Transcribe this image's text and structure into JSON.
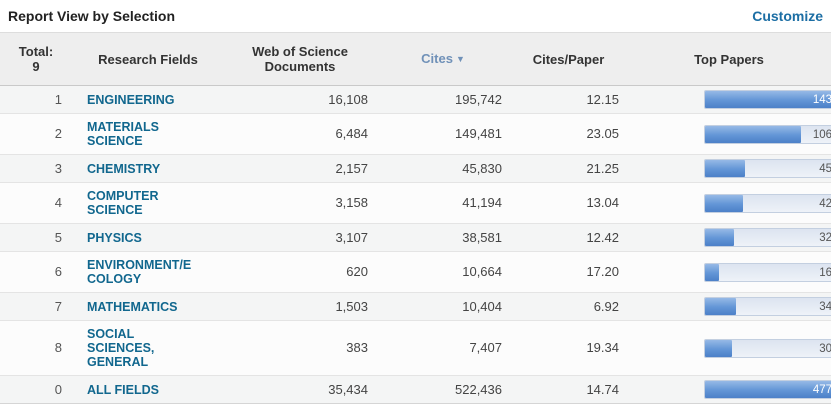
{
  "header": {
    "title": "Report View by Selection",
    "customize_label": "Customize"
  },
  "icons": {
    "sort_descending": "▼"
  },
  "colors": {
    "customize_link": "#1c6ea4",
    "field_link": "#11678e",
    "sorted_column": "#7091b8",
    "bar_fill": "#6295d6",
    "bar_track": "#e3eaf4",
    "header_bg": "#eeeeee"
  },
  "table": {
    "total_label": "Total:\n9",
    "columns": {
      "fields": "Research Fields",
      "docs": "Web of Science\nDocuments",
      "cites": "Cites",
      "cites_per_paper": "Cites/Paper",
      "top_papers": "Top Papers"
    },
    "sorted_by": "Cites",
    "rows": [
      {
        "rank": "1",
        "field": "ENGINEERING",
        "docs": "16,108",
        "cites": "195,742",
        "cites_per_paper": "12.15",
        "top_papers": "143",
        "bar_pct": 100,
        "bar_full": true
      },
      {
        "rank": "2",
        "field": "MATERIALS\nSCIENCE",
        "docs": "6,484",
        "cites": "149,481",
        "cites_per_paper": "23.05",
        "top_papers": "106",
        "bar_pct": 74,
        "bar_full": false
      },
      {
        "rank": "3",
        "field": "CHEMISTRY",
        "docs": "2,157",
        "cites": "45,830",
        "cites_per_paper": "21.25",
        "top_papers": "45",
        "bar_pct": 31,
        "bar_full": false
      },
      {
        "rank": "4",
        "field": "COMPUTER\nSCIENCE",
        "docs": "3,158",
        "cites": "41,194",
        "cites_per_paper": "13.04",
        "top_papers": "42",
        "bar_pct": 29,
        "bar_full": false
      },
      {
        "rank": "5",
        "field": "PHYSICS",
        "docs": "3,107",
        "cites": "38,581",
        "cites_per_paper": "12.42",
        "top_papers": "32",
        "bar_pct": 22,
        "bar_full": false
      },
      {
        "rank": "6",
        "field": "ENVIRONMENT/E\nCOLOGY",
        "docs": "620",
        "cites": "10,664",
        "cites_per_paper": "17.20",
        "top_papers": "16",
        "bar_pct": 11,
        "bar_full": false
      },
      {
        "rank": "7",
        "field": "MATHEMATICS",
        "docs": "1,503",
        "cites": "10,404",
        "cites_per_paper": "6.92",
        "top_papers": "34",
        "bar_pct": 24,
        "bar_full": false
      },
      {
        "rank": "8",
        "field": "SOCIAL\nSCIENCES,\nGENERAL",
        "docs": "383",
        "cites": "7,407",
        "cites_per_paper": "19.34",
        "top_papers": "30",
        "bar_pct": 21,
        "bar_full": false
      },
      {
        "rank": "0",
        "field": "ALL FIELDS",
        "docs": "35,434",
        "cites": "522,436",
        "cites_per_paper": "14.74",
        "top_papers": "477",
        "bar_pct": 100,
        "bar_full": true
      }
    ]
  }
}
